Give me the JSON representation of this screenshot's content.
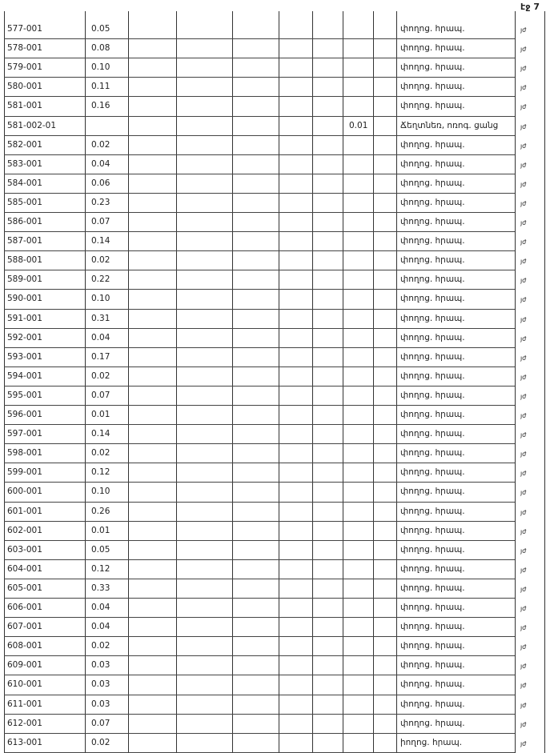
{
  "header": {
    "page": "էջ 7"
  },
  "table": {
    "rows": [
      {
        "code": "577-001",
        "area": "0.05",
        "use": "փողոց. հրապ.",
        "mark": "յժ"
      },
      {
        "code": "578-001",
        "area": "0.08",
        "use": "փողոց. հրապ.",
        "mark": "յժ"
      },
      {
        "code": "579-001",
        "area": "0.10",
        "use": "փողոց. հրապ.",
        "mark": "յժ"
      },
      {
        "code": "580-001",
        "area": "0.11",
        "use": "փողոց. հրապ.",
        "mark": "յժ"
      },
      {
        "code": "581-001",
        "area": "0.16",
        "use": "փողոց. հրապ.",
        "mark": "յժ"
      },
      {
        "code": "581-002-01",
        "other": "0.01",
        "use": "Ճեղտնեռ, ոռոգ. ցանց",
        "mark": "յժ"
      },
      {
        "code": "582-001",
        "area": "0.02",
        "use": "փողոց. հրապ.",
        "mark": "յժ"
      },
      {
        "code": "583-001",
        "area": "0.04",
        "use": "փողոց. հրապ.",
        "mark": "յժ"
      },
      {
        "code": "584-001",
        "area": "0.06",
        "use": "փողոց. հրապ.",
        "mark": "յժ"
      },
      {
        "code": "585-001",
        "area": "0.23",
        "use": "փողոց. հրապ.",
        "mark": "յժ"
      },
      {
        "code": "586-001",
        "area": "0.07",
        "use": "փողոց. հրապ.",
        "mark": "յժ"
      },
      {
        "code": "587-001",
        "area": "0.14",
        "use": "փողոց. հրապ.",
        "mark": "յժ"
      },
      {
        "code": "588-001",
        "area": "0.02",
        "use": "փողոց. հրապ.",
        "mark": "յժ"
      },
      {
        "code": "589-001",
        "area": "0.22",
        "use": "փողոց. հրապ.",
        "mark": "յժ"
      },
      {
        "code": "590-001",
        "area": "0.10",
        "use": "փողոց. հրապ.",
        "mark": "յժ"
      },
      {
        "code": "591-001",
        "area": "0.31",
        "use": "փողոց. հրապ.",
        "mark": "յժ"
      },
      {
        "code": "592-001",
        "area": "0.04",
        "use": "փողոց. հրապ.",
        "mark": "յժ"
      },
      {
        "code": "593-001",
        "area": "0.17",
        "use": "փողոց. հրապ.",
        "mark": "յժ"
      },
      {
        "code": "594-001",
        "area": "0.02",
        "use": "փողոց. հրապ.",
        "mark": "յժ"
      },
      {
        "code": "595-001",
        "area": "0.07",
        "use": "փողոց. հրապ.",
        "mark": "յժ"
      },
      {
        "code": "596-001",
        "area": "0.01",
        "use": "փողոց. հրապ.",
        "mark": "յժ"
      },
      {
        "code": "597-001",
        "area": "0.14",
        "use": "փողոց. հրապ.",
        "mark": "յժ"
      },
      {
        "code": "598-001",
        "area": "0.02",
        "use": "փողոց. հրապ.",
        "mark": "յժ"
      },
      {
        "code": "599-001",
        "area": "0.12",
        "use": "փողոց. հրապ.",
        "mark": "յժ"
      },
      {
        "code": "600-001",
        "area": "0.10",
        "use": "փողոց. հրապ.",
        "mark": "յժ"
      },
      {
        "code": "601-001",
        "area": "0.26",
        "use": "փողոց. հրապ.",
        "mark": "յժ"
      },
      {
        "code": "602-001",
        "area": "0.01",
        "use": "փողոց. հրապ.",
        "mark": "յժ"
      },
      {
        "code": "603-001",
        "area": "0.05",
        "use": "փողոց. հրապ.",
        "mark": "յժ"
      },
      {
        "code": "604-001",
        "area": "0.12",
        "use": "փողոց. հրապ.",
        "mark": "յժ"
      },
      {
        "code": "605-001",
        "area": "0.33",
        "use": "փողոց. հրապ.",
        "mark": "յժ"
      },
      {
        "code": "606-001",
        "area": "0.04",
        "use": "փողոց. հրապ.",
        "mark": "յժ"
      },
      {
        "code": "607-001",
        "area": "0.04",
        "use": "փողոց. հրապ.",
        "mark": "յժ"
      },
      {
        "code": "608-001",
        "area": "0.02",
        "use": "փողոց. հրապ.",
        "mark": "յժ"
      },
      {
        "code": "609-001",
        "area": "0.03",
        "use": "փողոց. հրապ.",
        "mark": "յժ"
      },
      {
        "code": "610-001",
        "area": "0.03",
        "use": "փողոց. հրապ.",
        "mark": "յժ"
      },
      {
        "code": "611-001",
        "area": "0.03",
        "use": "փողոց. հրապ.",
        "mark": "յժ"
      },
      {
        "code": "612-001",
        "area": "0.07",
        "use": "փողոց. հրապ.",
        "mark": "յժ"
      },
      {
        "code": "613-001",
        "area": "0.02",
        "use": "իողոց. հրապ.",
        "mark": "յժ"
      }
    ]
  }
}
